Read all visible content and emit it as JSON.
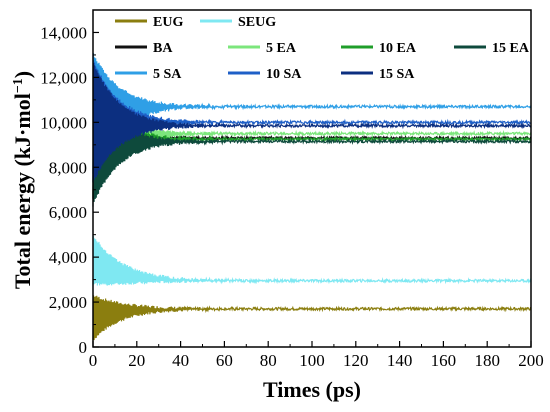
{
  "chart_data": {
    "type": "line",
    "title": "",
    "xlabel": "Times (ps)",
    "ylabel": "Total energy (kJ·mol⁻¹)",
    "ylabel_main": "Total energy (kJ·mol",
    "ylabel_sup": "−1",
    "ylabel_close": ")",
    "xlim": [
      0,
      200
    ],
    "ylim": [
      0,
      15000
    ],
    "x_ticks": [
      "0",
      "20",
      "40",
      "60",
      "80",
      "100",
      "120",
      "140",
      "160",
      "180",
      "200"
    ],
    "y_ticks": [
      "0",
      "2,000",
      "4,000",
      "6,000",
      "8,000",
      "10,000",
      "12,000",
      "14,000"
    ],
    "x_tick_values": [
      0,
      20,
      40,
      60,
      80,
      100,
      120,
      140,
      160,
      180,
      200
    ],
    "y_tick_values": [
      0,
      2000,
      4000,
      6000,
      8000,
      10000,
      12000,
      14000
    ],
    "legend_position": "top",
    "grid": false,
    "series": [
      {
        "name": "EUG",
        "color": "#8b7e0f",
        "start": 1300,
        "amplitude": 1000,
        "plateau": 1700,
        "settle_time": 40
      },
      {
        "name": "SEUG",
        "color": "#7fe8f2",
        "start": 3900,
        "amplitude": 1100,
        "plateau": 2950,
        "settle_time": 45
      },
      {
        "name": "BA",
        "color": "#111111",
        "start": 8900,
        "amplitude": 2300,
        "plateau": 9300,
        "settle_time": 35
      },
      {
        "name": "5 EA",
        "color": "#7ce67c",
        "start": 9200,
        "amplitude": 2400,
        "plateau": 9500,
        "settle_time": 35
      },
      {
        "name": "10 EA",
        "color": "#1f9e2a",
        "start": 9000,
        "amplitude": 2400,
        "plateau": 9250,
        "settle_time": 35
      },
      {
        "name": "15 EA",
        "color": "#0e4a3c",
        "start": 8800,
        "amplitude": 2500,
        "plateau": 9150,
        "settle_time": 35
      },
      {
        "name": "5 SA",
        "color": "#2f9fe6",
        "start": 10400,
        "amplitude": 2700,
        "plateau": 10700,
        "settle_time": 35
      },
      {
        "name": "10 SA",
        "color": "#1e5fc7",
        "start": 10100,
        "amplitude": 2700,
        "plateau": 10000,
        "settle_time": 35
      },
      {
        "name": "15 SA",
        "color": "#0c2f80",
        "start": 10000,
        "amplitude": 2700,
        "plateau": 9850,
        "settle_time": 35
      }
    ]
  }
}
